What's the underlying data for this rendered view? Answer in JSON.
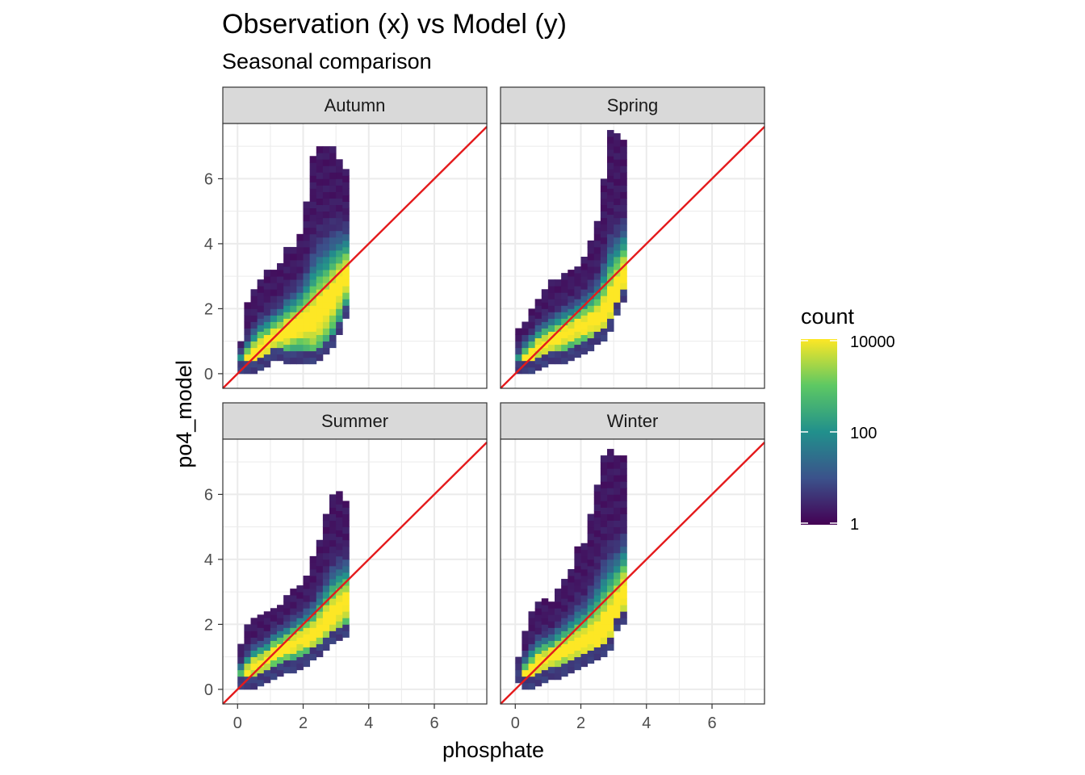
{
  "chart_data": {
    "type": "heatmap",
    "title": "Observation (x) vs Model (y)",
    "subtitle": "Seasonal comparison",
    "xlabel": "phosphate",
    "ylabel": "po4_model",
    "xlim": [
      -0.45,
      7.6
    ],
    "ylim": [
      -0.45,
      7.7
    ],
    "x_ticks": [
      0,
      2,
      4,
      6
    ],
    "x_tick_labels": [
      "0",
      "2",
      "4",
      "6"
    ],
    "y_ticks": [
      0,
      2,
      4,
      6
    ],
    "y_tick_labels": [
      "0",
      "2",
      "4",
      "6"
    ],
    "grid": true,
    "reference_line": {
      "slope": 1,
      "intercept": 0,
      "color": "#e41a1c"
    },
    "legend": {
      "title": "count",
      "placement": "right",
      "scale": "log10",
      "range": [
        1,
        10000
      ],
      "breaks": [
        1,
        100,
        10000
      ],
      "break_labels": [
        "1",
        "100",
        "10000"
      ],
      "palette": [
        "#440154",
        "#3b528b",
        "#21908c",
        "#5dc863",
        "#fde725"
      ]
    },
    "facets": [
      {
        "name": "Autumn",
        "bin_width": 0.2,
        "columns": [
          [
            0.0,
            0.0,
            1.0
          ],
          [
            0.2,
            0.0,
            2.2
          ],
          [
            0.4,
            0.0,
            2.6
          ],
          [
            0.6,
            0.1,
            2.9
          ],
          [
            0.8,
            0.2,
            3.1
          ],
          [
            1.0,
            0.4,
            3.2
          ],
          [
            1.2,
            0.4,
            3.3
          ],
          [
            1.4,
            0.3,
            3.8
          ],
          [
            1.6,
            0.3,
            3.9
          ],
          [
            1.8,
            0.3,
            4.3
          ],
          [
            2.0,
            0.3,
            5.2
          ],
          [
            2.2,
            0.3,
            6.6
          ],
          [
            2.4,
            0.4,
            7.0
          ],
          [
            2.6,
            0.6,
            7.0
          ],
          [
            2.8,
            0.8,
            6.9
          ],
          [
            3.0,
            1.2,
            6.6
          ],
          [
            3.2,
            1.7,
            6.3
          ]
        ],
        "ridge": [
          0.1,
          0.4,
          0.6,
          0.8,
          0.9,
          1.1,
          1.2,
          1.3,
          1.4,
          1.5,
          1.6,
          1.7,
          1.9,
          2.1,
          2.4,
          2.7,
          3.0
        ],
        "peak_log10": 4.0
      },
      {
        "name": "Spring",
        "bin_width": 0.2,
        "columns": [
          [
            0.0,
            0.0,
            1.3
          ],
          [
            0.2,
            0.0,
            1.6
          ],
          [
            0.4,
            0.0,
            2.0
          ],
          [
            0.6,
            0.1,
            2.3
          ],
          [
            0.8,
            0.2,
            2.6
          ],
          [
            1.0,
            0.3,
            2.8
          ],
          [
            1.2,
            0.3,
            2.9
          ],
          [
            1.4,
            0.3,
            3.0
          ],
          [
            1.6,
            0.4,
            3.1
          ],
          [
            1.8,
            0.5,
            3.3
          ],
          [
            2.0,
            0.6,
            3.6
          ],
          [
            2.2,
            0.7,
            4.0
          ],
          [
            2.4,
            0.9,
            4.7
          ],
          [
            2.6,
            1.0,
            6.0
          ],
          [
            2.8,
            1.3,
            7.4
          ],
          [
            3.0,
            1.8,
            7.3
          ],
          [
            3.2,
            2.2,
            7.2
          ]
        ],
        "ridge": [
          0.1,
          0.4,
          0.6,
          0.8,
          0.9,
          1.0,
          1.1,
          1.2,
          1.3,
          1.4,
          1.5,
          1.6,
          1.7,
          1.9,
          2.2,
          2.6,
          3.0
        ],
        "peak_log10": 4.0
      },
      {
        "name": "Summer",
        "bin_width": 0.2,
        "columns": [
          [
            0.0,
            0.0,
            1.4
          ],
          [
            0.2,
            0.0,
            1.9
          ],
          [
            0.4,
            0.0,
            2.1
          ],
          [
            0.6,
            0.1,
            2.2
          ],
          [
            0.8,
            0.2,
            2.3
          ],
          [
            1.0,
            0.3,
            2.5
          ],
          [
            1.2,
            0.4,
            2.6
          ],
          [
            1.4,
            0.5,
            2.8
          ],
          [
            1.6,
            0.5,
            3.0
          ],
          [
            1.8,
            0.6,
            3.2
          ],
          [
            2.0,
            0.7,
            3.5
          ],
          [
            2.2,
            0.9,
            4.0
          ],
          [
            2.4,
            1.0,
            4.6
          ],
          [
            2.6,
            1.2,
            5.3
          ],
          [
            2.8,
            1.4,
            6.0
          ],
          [
            3.0,
            1.5,
            6.0
          ],
          [
            3.2,
            1.6,
            5.7
          ]
        ],
        "ridge": [
          0.2,
          0.5,
          0.7,
          0.8,
          0.9,
          1.1,
          1.2,
          1.3,
          1.4,
          1.5,
          1.6,
          1.7,
          1.9,
          2.1,
          2.3,
          2.5,
          2.7
        ],
        "peak_log10": 4.0
      },
      {
        "name": "Winter",
        "bin_width": 0.2,
        "columns": [
          [
            0.0,
            0.2,
            1.0
          ],
          [
            0.2,
            0.0,
            1.7
          ],
          [
            0.4,
            0.0,
            2.4
          ],
          [
            0.6,
            0.1,
            2.6
          ],
          [
            0.8,
            0.2,
            2.7
          ],
          [
            1.0,
            0.3,
            2.7
          ],
          [
            1.2,
            0.3,
            3.0
          ],
          [
            1.4,
            0.4,
            3.3
          ],
          [
            1.6,
            0.5,
            3.7
          ],
          [
            1.8,
            0.6,
            4.3
          ],
          [
            2.0,
            0.7,
            4.4
          ],
          [
            2.2,
            0.8,
            5.3
          ],
          [
            2.4,
            0.9,
            6.3
          ],
          [
            2.6,
            1.0,
            7.2
          ],
          [
            2.8,
            1.2,
            7.3
          ],
          [
            3.0,
            1.8,
            7.2
          ],
          [
            3.2,
            2.0,
            7.1
          ]
        ],
        "ridge": [
          0.1,
          0.4,
          0.6,
          0.8,
          0.9,
          1.0,
          1.1,
          1.2,
          1.3,
          1.4,
          1.5,
          1.6,
          1.7,
          1.9,
          2.2,
          2.6,
          3.0
        ],
        "peak_log10": 4.0
      }
    ]
  }
}
